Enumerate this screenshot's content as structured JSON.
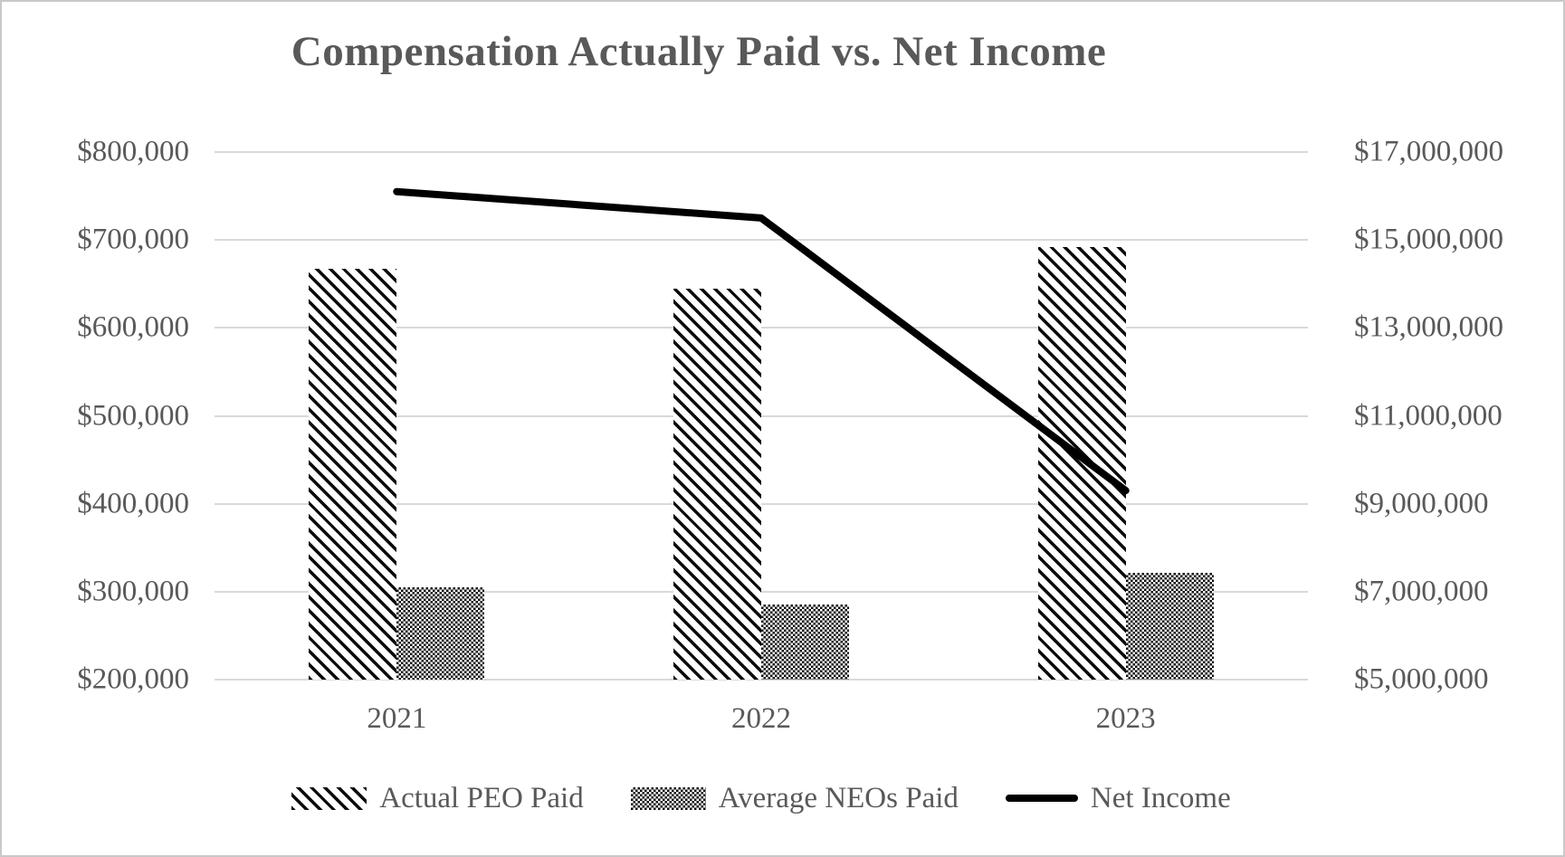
{
  "title": "Compensation Actually Paid vs. Net Income",
  "chart_data": {
    "type": "combo",
    "subtype": "clustered-bars-with-line",
    "categories": [
      "2021",
      "2022",
      "2023"
    ],
    "bar_series": [
      {
        "name": "Actual PEO Paid",
        "axis": "left",
        "pattern": "diagonal-hatch",
        "values": [
          667000,
          645000,
          692000
        ]
      },
      {
        "name": "Average NEOs Paid",
        "axis": "left",
        "pattern": "checker-dots",
        "values": [
          305000,
          285000,
          321000
        ]
      }
    ],
    "line_series": [
      {
        "name": "Net Income",
        "axis": "right",
        "color": "#000000",
        "values": [
          16100000,
          15500000,
          9300000
        ]
      }
    ],
    "left_axis": {
      "min": 200000,
      "max": 800000,
      "step": 100000,
      "tick_labels_top_to_bottom": [
        "$800,000",
        "$700,000",
        "$600,000",
        "$500,000",
        "$400,000",
        "$300,000",
        "$200,000"
      ]
    },
    "right_axis": {
      "min": 5000000,
      "max": 17000000,
      "step": 2000000,
      "tick_labels_top_to_bottom": [
        "$17,000,000",
        "$15,000,000",
        "$13,000,000",
        "$11,000,000",
        "$9,000,000",
        "$7,000,000",
        "$5,000,000"
      ]
    },
    "grid": true,
    "legend_position": "bottom"
  },
  "legend": {
    "items": [
      {
        "label": "Actual PEO Paid",
        "swatch": "diagonal-hatch"
      },
      {
        "label": "Average NEOs Paid",
        "swatch": "checker-dots"
      },
      {
        "label": "Net Income",
        "swatch": "line"
      }
    ]
  },
  "colors": {
    "text": "#595959",
    "gridline": "#d9d9d9",
    "line": "#000000",
    "background": "#ffffff",
    "border": "#c9c9c9"
  }
}
